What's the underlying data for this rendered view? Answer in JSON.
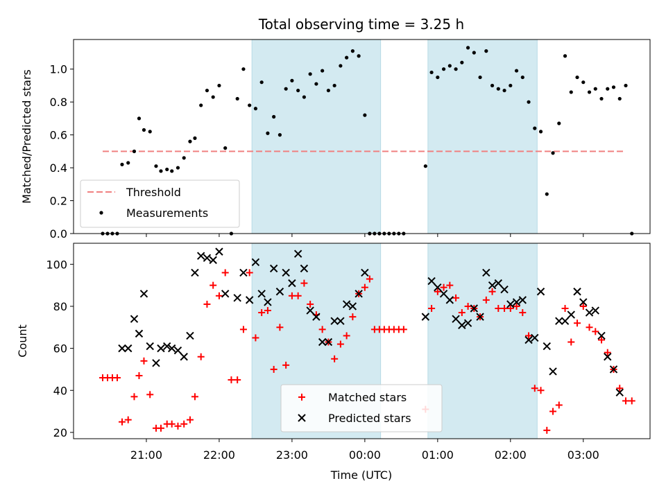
{
  "chart_data": [
    {
      "type": "scatter",
      "title": "Total observing time = 3.25 h",
      "xlabel": "",
      "ylabel": "Matched/Predicted stars",
      "ylim": [
        0,
        1.18
      ],
      "xlim": [
        "20:00",
        "03:55"
      ],
      "yticks": [
        "0.0",
        "0.2",
        "0.4",
        "0.6",
        "0.8",
        "1.0"
      ],
      "shaded_intervals": [
        [
          "22:27",
          "00:13"
        ],
        [
          "00:52",
          "02:22"
        ]
      ],
      "shade_color": "#d3eaf1",
      "legend_position": "lower-left",
      "threshold": {
        "name": "Threshold",
        "value": 0.5,
        "x_range": [
          "20:24",
          "03:34"
        ],
        "color": "#f08080"
      },
      "series": [
        {
          "name": "Measurements",
          "marker": "dot",
          "color": "#000000",
          "points": [
            [
              "20:24",
              0.0
            ],
            [
              "20:28",
              0.0
            ],
            [
              "20:32",
              0.0
            ],
            [
              "20:36",
              0.0
            ],
            [
              "20:40",
              0.42
            ],
            [
              "20:45",
              0.43
            ],
            [
              "20:50",
              0.5
            ],
            [
              "20:54",
              0.7
            ],
            [
              "20:58",
              0.63
            ],
            [
              "21:03",
              0.62
            ],
            [
              "21:08",
              0.41
            ],
            [
              "21:12",
              0.38
            ],
            [
              "21:17",
              0.39
            ],
            [
              "21:21",
              0.38
            ],
            [
              "21:26",
              0.4
            ],
            [
              "21:31",
              0.46
            ],
            [
              "21:36",
              0.56
            ],
            [
              "21:40",
              0.58
            ],
            [
              "21:45",
              0.78
            ],
            [
              "21:50",
              0.87
            ],
            [
              "21:55",
              0.83
            ],
            [
              "22:00",
              0.9
            ],
            [
              "22:05",
              0.52
            ],
            [
              "22:10",
              0.0
            ],
            [
              "22:15",
              0.82
            ],
            [
              "22:20",
              1.0
            ],
            [
              "22:25",
              0.78
            ],
            [
              "22:30",
              0.76
            ],
            [
              "22:35",
              0.92
            ],
            [
              "22:40",
              0.61
            ],
            [
              "22:45",
              0.71
            ],
            [
              "22:50",
              0.6
            ],
            [
              "22:55",
              0.88
            ],
            [
              "23:00",
              0.93
            ],
            [
              "23:05",
              0.87
            ],
            [
              "23:10",
              0.83
            ],
            [
              "23:15",
              0.97
            ],
            [
              "23:20",
              0.91
            ],
            [
              "23:25",
              0.99
            ],
            [
              "23:30",
              0.87
            ],
            [
              "23:35",
              0.9
            ],
            [
              "23:40",
              1.02
            ],
            [
              "23:45",
              1.07
            ],
            [
              "23:50",
              1.11
            ],
            [
              "23:55",
              1.08
            ],
            [
              "00:00",
              0.72
            ],
            [
              "00:04",
              0.0
            ],
            [
              "00:08",
              0.0
            ],
            [
              "00:12",
              0.0
            ],
            [
              "00:16",
              0.0
            ],
            [
              "00:20",
              0.0
            ],
            [
              "00:24",
              0.0
            ],
            [
              "00:28",
              0.0
            ],
            [
              "00:32",
              0.0
            ],
            [
              "00:50",
              0.41
            ],
            [
              "00:55",
              0.98
            ],
            [
              "01:00",
              0.95
            ],
            [
              "01:05",
              1.0
            ],
            [
              "01:10",
              1.02
            ],
            [
              "01:15",
              1.0
            ],
            [
              "01:20",
              1.04
            ],
            [
              "01:25",
              1.13
            ],
            [
              "01:30",
              1.1
            ],
            [
              "01:35",
              0.95
            ],
            [
              "01:40",
              1.11
            ],
            [
              "01:45",
              0.9
            ],
            [
              "01:50",
              0.88
            ],
            [
              "01:55",
              0.87
            ],
            [
              "02:00",
              0.9
            ],
            [
              "02:05",
              0.99
            ],
            [
              "02:10",
              0.95
            ],
            [
              "02:15",
              0.8
            ],
            [
              "02:20",
              0.64
            ],
            [
              "02:25",
              0.62
            ],
            [
              "02:30",
              0.24
            ],
            [
              "02:35",
              0.49
            ],
            [
              "02:40",
              0.67
            ],
            [
              "02:45",
              1.08
            ],
            [
              "02:50",
              0.86
            ],
            [
              "02:55",
              0.95
            ],
            [
              "03:00",
              0.92
            ],
            [
              "03:05",
              0.86
            ],
            [
              "03:10",
              0.88
            ],
            [
              "03:15",
              0.82
            ],
            [
              "03:20",
              0.88
            ],
            [
              "03:25",
              0.89
            ],
            [
              "03:30",
              0.82
            ],
            [
              "03:35",
              0.9
            ],
            [
              "03:40",
              0.0
            ]
          ]
        }
      ]
    },
    {
      "type": "scatter",
      "title": "",
      "xlabel": "Time (UTC)",
      "ylabel": "Count",
      "ylim": [
        17,
        110
      ],
      "xlim": [
        "20:00",
        "03:55"
      ],
      "xticks": [
        "21:00",
        "22:00",
        "23:00",
        "00:00",
        "01:00",
        "02:00",
        "03:00"
      ],
      "yticks": [
        "20",
        "40",
        "60",
        "80",
        "100"
      ],
      "shaded_intervals": [
        [
          "22:27",
          "00:13"
        ],
        [
          "00:52",
          "02:22"
        ]
      ],
      "shade_color": "#d3eaf1",
      "legend_position": "lower-center",
      "series": [
        {
          "name": "Matched stars",
          "marker": "plus",
          "color": "#ff0000",
          "points": [
            [
              "20:24",
              46
            ],
            [
              "20:28",
              46
            ],
            [
              "20:32",
              46
            ],
            [
              "20:36",
              46
            ],
            [
              "20:40",
              25
            ],
            [
              "20:45",
              26
            ],
            [
              "20:50",
              37
            ],
            [
              "20:54",
              47
            ],
            [
              "20:58",
              54
            ],
            [
              "21:03",
              38
            ],
            [
              "21:08",
              22
            ],
            [
              "21:12",
              22
            ],
            [
              "21:17",
              24
            ],
            [
              "21:21",
              24
            ],
            [
              "21:26",
              23
            ],
            [
              "21:31",
              24
            ],
            [
              "21:36",
              26
            ],
            [
              "21:40",
              37
            ],
            [
              "21:45",
              56
            ],
            [
              "21:50",
              81
            ],
            [
              "21:55",
              90
            ],
            [
              "22:00",
              85
            ],
            [
              "22:05",
              96
            ],
            [
              "22:10",
              45
            ],
            [
              "22:15",
              45
            ],
            [
              "22:20",
              69
            ],
            [
              "22:25",
              96
            ],
            [
              "22:30",
              65
            ],
            [
              "22:35",
              77
            ],
            [
              "22:40",
              78
            ],
            [
              "22:45",
              50
            ],
            [
              "22:50",
              70
            ],
            [
              "22:55",
              52
            ],
            [
              "23:00",
              85
            ],
            [
              "23:05",
              85
            ],
            [
              "23:10",
              91
            ],
            [
              "23:15",
              81
            ],
            [
              "23:20",
              76
            ],
            [
              "23:25",
              69
            ],
            [
              "23:30",
              63
            ],
            [
              "23:35",
              55
            ],
            [
              "23:40",
              62
            ],
            [
              "23:45",
              66
            ],
            [
              "23:50",
              75
            ],
            [
              "23:55",
              86
            ],
            [
              "00:00",
              89
            ],
            [
              "00:04",
              93
            ],
            [
              "00:08",
              69
            ],
            [
              "00:12",
              69
            ],
            [
              "00:16",
              69
            ],
            [
              "00:20",
              69
            ],
            [
              "00:24",
              69
            ],
            [
              "00:28",
              69
            ],
            [
              "00:32",
              69
            ],
            [
              "00:50",
              31
            ],
            [
              "00:55",
              79
            ],
            [
              "01:00",
              87
            ],
            [
              "01:05",
              89
            ],
            [
              "01:10",
              90
            ],
            [
              "01:15",
              84
            ],
            [
              "01:20",
              77
            ],
            [
              "01:25",
              80
            ],
            [
              "01:30",
              79
            ],
            [
              "01:35",
              75
            ],
            [
              "01:40",
              83
            ],
            [
              "01:45",
              87
            ],
            [
              "01:50",
              79
            ],
            [
              "01:55",
              79
            ],
            [
              "02:00",
              79
            ],
            [
              "02:05",
              80
            ],
            [
              "02:10",
              77
            ],
            [
              "02:15",
              66
            ],
            [
              "02:20",
              41
            ],
            [
              "02:25",
              40
            ],
            [
              "02:30",
              21
            ],
            [
              "02:35",
              30
            ],
            [
              "02:40",
              33
            ],
            [
              "02:45",
              79
            ],
            [
              "02:50",
              63
            ],
            [
              "02:55",
              72
            ],
            [
              "03:00",
              80
            ],
            [
              "03:05",
              70
            ],
            [
              "03:10",
              68
            ],
            [
              "03:15",
              64
            ],
            [
              "03:20",
              58
            ],
            [
              "03:25",
              50
            ],
            [
              "03:30",
              41
            ],
            [
              "03:35",
              35
            ],
            [
              "03:40",
              35
            ]
          ]
        },
        {
          "name": "Predicted stars",
          "marker": "x",
          "color": "#000000",
          "points": [
            [
              "20:40",
              60
            ],
            [
              "20:45",
              60
            ],
            [
              "20:50",
              74
            ],
            [
              "20:54",
              67
            ],
            [
              "20:58",
              86
            ],
            [
              "21:03",
              61
            ],
            [
              "21:08",
              53
            ],
            [
              "21:12",
              60
            ],
            [
              "21:17",
              61
            ],
            [
              "21:21",
              60
            ],
            [
              "21:26",
              59
            ],
            [
              "21:31",
              56
            ],
            [
              "21:36",
              66
            ],
            [
              "21:40",
              96
            ],
            [
              "21:45",
              104
            ],
            [
              "21:50",
              103
            ],
            [
              "21:55",
              102
            ],
            [
              "22:00",
              106
            ],
            [
              "22:05",
              86
            ],
            [
              "22:15",
              84
            ],
            [
              "22:20",
              96
            ],
            [
              "22:25",
              83
            ],
            [
              "22:30",
              101
            ],
            [
              "22:35",
              86
            ],
            [
              "22:40",
              82
            ],
            [
              "22:45",
              98
            ],
            [
              "22:50",
              87
            ],
            [
              "22:55",
              96
            ],
            [
              "23:00",
              91
            ],
            [
              "23:05",
              105
            ],
            [
              "23:10",
              98
            ],
            [
              "23:15",
              78
            ],
            [
              "23:20",
              75
            ],
            [
              "23:25",
              63
            ],
            [
              "23:30",
              63
            ],
            [
              "23:35",
              73
            ],
            [
              "23:40",
              73
            ],
            [
              "23:45",
              81
            ],
            [
              "23:50",
              80
            ],
            [
              "23:55",
              86
            ],
            [
              "00:00",
              96
            ],
            [
              "00:50",
              75
            ],
            [
              "00:55",
              92
            ],
            [
              "01:00",
              89
            ],
            [
              "01:05",
              86
            ],
            [
              "01:10",
              83
            ],
            [
              "01:15",
              74
            ],
            [
              "01:20",
              71
            ],
            [
              "01:25",
              72
            ],
            [
              "01:30",
              79
            ],
            [
              "01:35",
              75
            ],
            [
              "01:40",
              96
            ],
            [
              "01:45",
              90
            ],
            [
              "01:50",
              91
            ],
            [
              "01:55",
              88
            ],
            [
              "02:00",
              81
            ],
            [
              "02:05",
              82
            ],
            [
              "02:10",
              83
            ],
            [
              "02:15",
              64
            ],
            [
              "02:20",
              65
            ],
            [
              "02:25",
              87
            ],
            [
              "02:30",
              61
            ],
            [
              "02:35",
              49
            ],
            [
              "02:40",
              73
            ],
            [
              "02:45",
              73
            ],
            [
              "02:50",
              76
            ],
            [
              "02:55",
              87
            ],
            [
              "03:00",
              82
            ],
            [
              "03:05",
              77
            ],
            [
              "03:10",
              78
            ],
            [
              "03:15",
              66
            ],
            [
              "03:20",
              56
            ],
            [
              "03:25",
              50
            ],
            [
              "03:30",
              39
            ]
          ]
        }
      ]
    }
  ]
}
